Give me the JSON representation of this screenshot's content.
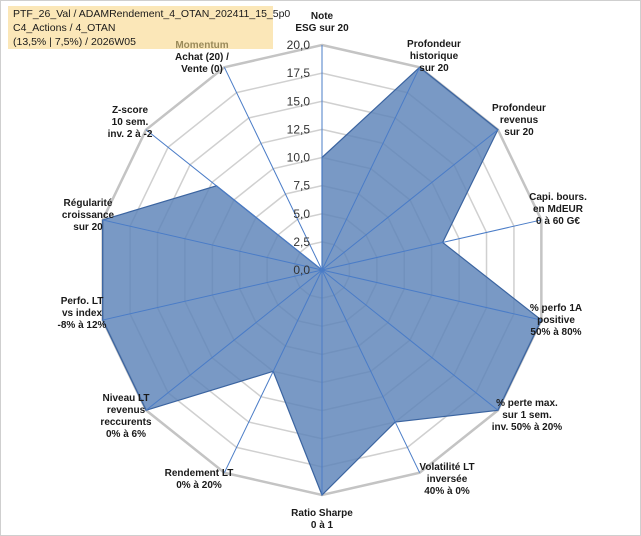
{
  "title": {
    "line1": "PTF_26_Val / ADAMRendement_4_OTAN_202411_15_5p0",
    "line2": "C4_Actions / 4_OTAN",
    "line3": "(13,5% | 7,5%) / 2026W05"
  },
  "chart_data": {
    "type": "radar",
    "rmax": 20,
    "ticks": [
      "0,0",
      "2,5",
      "5,0",
      "7,5",
      "10,0",
      "12,5",
      "15,0",
      "17,5",
      "20,0"
    ],
    "axes": [
      {
        "lines": [
          "Note",
          "ESG sur 20"
        ],
        "value": 10,
        "anchor": "middle"
      },
      {
        "lines": [
          "Profondeur",
          "historique",
          "sur 20"
        ],
        "value": 20,
        "anchor": "middle"
      },
      {
        "lines": [
          "Profondeur",
          "revenus",
          "sur 20"
        ],
        "value": 20,
        "anchor": "middle"
      },
      {
        "lines": [
          "Capi. bours.",
          "en MdEUR",
          "0 à 60 G€"
        ],
        "value": 11,
        "anchor": "middle"
      },
      {
        "lines": [
          "% perfo 1A",
          "positive",
          "50% à 80%"
        ],
        "value": 20,
        "anchor": "middle"
      },
      {
        "lines": [
          "% perte max.",
          "sur 1 sem.",
          "inv. 50% à 20%"
        ],
        "value": 20,
        "anchor": "middle"
      },
      {
        "lines": [
          "Volatilité LT",
          "inversée",
          "40% à 0%"
        ],
        "value": 15,
        "anchor": "middle"
      },
      {
        "lines": [
          "Ratio Sharpe",
          "0 à 1"
        ],
        "value": 20,
        "anchor": "middle"
      },
      {
        "lines": [
          "Rendement LT",
          "0% à 20%"
        ],
        "value": 10,
        "anchor": "middle"
      },
      {
        "lines": [
          "Niveau LT",
          "revenus",
          "reccurents",
          "0% à 6%"
        ],
        "value": 20,
        "anchor": "middle"
      },
      {
        "lines": [
          "Perfo. LT",
          "vs index",
          "-8% à 12%"
        ],
        "value": 20,
        "anchor": "middle"
      },
      {
        "lines": [
          "Régularité",
          "croissance",
          "sur 20"
        ],
        "value": 20,
        "anchor": "middle"
      },
      {
        "lines": [
          "Z-score",
          "10 sem.",
          "inv. 2 à -2"
        ],
        "value": 12,
        "anchor": "middle"
      },
      {
        "lines": [
          "Momentum",
          "Achat (20) /",
          "Vente (0)"
        ],
        "value": 0,
        "anchor": "middle",
        "faded_first": true
      }
    ],
    "fill_color": "#5b82b8",
    "fill_opacity": 0.82,
    "stroke_color": "#3b64a0",
    "grid_color": "#d0d0d0",
    "spoke_color": "#4a7cc7"
  }
}
